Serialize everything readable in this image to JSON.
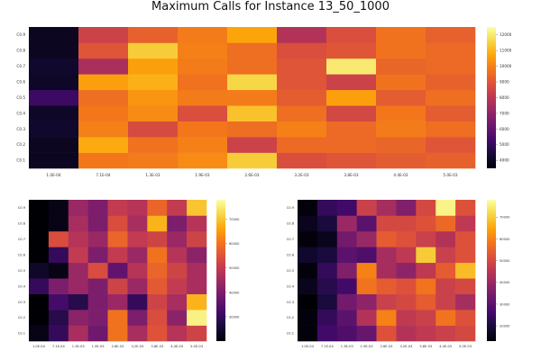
{
  "title": "Maximum Calls for Instance 13_50_1000",
  "chart_data": [
    {
      "type": "heatmap",
      "title": "Maximum Calls for Instance 13_50_1000",
      "x": [
        "1.0E-04",
        "7.1E-04",
        "1.3E-03",
        "1.9E-03",
        "2.6E-03",
        "3.2E-03",
        "3.8E-03",
        "4.4E-03",
        "5.0E-03"
      ],
      "y": [
        "C0.1",
        "C0.2",
        "C0.3",
        "C0.4",
        "C0.5",
        "C0.6",
        "C0.7",
        "C0.8",
        "C0.9"
      ],
      "colorbar_ticks": [
        4000,
        5000,
        6000,
        7000,
        8000,
        9000,
        10000,
        11000,
        12000
      ],
      "clim": [
        3500,
        12500
      ],
      "colormap": "inferno",
      "z": [
        [
          4000,
          9800,
          9900,
          10200,
          11400,
          8800,
          9000,
          9200,
          9300
        ],
        [
          4000,
          10800,
          9700,
          10000,
          8400,
          9500,
          9500,
          9400,
          9000
        ],
        [
          4200,
          10000,
          8700,
          9800,
          9600,
          10000,
          9500,
          9900,
          9600
        ],
        [
          4100,
          9800,
          10200,
          8800,
          11200,
          9600,
          8600,
          9800,
          9200
        ],
        [
          5200,
          9600,
          10400,
          9900,
          9900,
          9200,
          10600,
          9200,
          9600
        ],
        [
          4100,
          10600,
          10900,
          9700,
          11600,
          9000,
          8400,
          9700,
          9300
        ],
        [
          4200,
          7600,
          10600,
          9900,
          9600,
          9000,
          12000,
          9400,
          9500
        ],
        [
          4000,
          9000,
          11400,
          10000,
          9600,
          8800,
          9000,
          9700,
          9500
        ],
        [
          4000,
          8400,
          9300,
          9900,
          10700,
          7800,
          8800,
          9700,
          9300
        ]
      ]
    },
    {
      "type": "heatmap",
      "x": [
        "1.0E-04",
        "7.1E-04",
        "1.3E-03",
        "1.9E-03",
        "2.6E-03",
        "3.2E-03",
        "3.8E-03",
        "4.4E-03",
        "5.0E-03"
      ],
      "y": [
        "C0.1",
        "C0.2",
        "C0.3",
        "C0.4",
        "C0.5",
        "C0.6",
        "C0.7",
        "C0.8",
        "C0.9"
      ],
      "colorbar_ticks": [
        30000,
        40000,
        50000,
        60000,
        70000
      ],
      "clim": [
        20000,
        78000
      ],
      "colormap": "inferno",
      "z": [
        [
          22000,
          30000,
          46000,
          38000,
          60000,
          46000,
          55000,
          48000,
          52000
        ],
        [
          20000,
          28000,
          42000,
          40000,
          60000,
          40000,
          54000,
          42000,
          76000
        ],
        [
          20000,
          32000,
          28000,
          40000,
          44000,
          30000,
          52000,
          46000,
          68000
        ],
        [
          30000,
          40000,
          44000,
          40000,
          52000,
          44000,
          56000,
          50000,
          46000
        ],
        [
          24000,
          22000,
          44000,
          54000,
          36000,
          48000,
          58000,
          52000,
          46000
        ],
        [
          20000,
          30000,
          50000,
          40000,
          50000,
          44000,
          60000,
          48000,
          42000
        ],
        [
          20000,
          54000,
          48000,
          44000,
          58000,
          50000,
          52000,
          44000,
          52000
        ],
        [
          20000,
          22000,
          46000,
          40000,
          54000,
          46000,
          68000,
          40000,
          48000
        ],
        [
          20000,
          22000,
          44000,
          40000,
          50000,
          48000,
          58000,
          50000,
          70000
        ]
      ]
    },
    {
      "type": "heatmap",
      "x": [
        "1.0E-04",
        "7.1E-04",
        "1.3E-03",
        "1.9E-03",
        "2.6E-03",
        "3.2E-03",
        "3.8E-03",
        "4.4E-03",
        "5.0E-03"
      ],
      "y": [
        "C0.1",
        "C0.2",
        "C0.3",
        "C0.4",
        "C0.5",
        "C0.6",
        "C0.7",
        "C0.8",
        "C0.9"
      ],
      "colorbar_ticks": [
        20000,
        30000,
        40000,
        50000,
        60000,
        70000
      ],
      "clim": [
        13000,
        78000
      ],
      "colormap": "inferno",
      "z": [
        [
          14000,
          26000,
          28000,
          32000,
          52000,
          44000,
          46000,
          48000,
          50000
        ],
        [
          14000,
          24000,
          30000,
          44000,
          60000,
          46000,
          48000,
          58000,
          52000
        ],
        [
          13000,
          20000,
          34000,
          38000,
          48000,
          50000,
          54000,
          48000,
          42000
        ],
        [
          16000,
          22000,
          26000,
          58000,
          54000,
          52000,
          58000,
          48000,
          50000
        ],
        [
          14000,
          24000,
          36000,
          60000,
          42000,
          38000,
          46000,
          54000,
          68000
        ],
        [
          18000,
          20000,
          30000,
          28000,
          42000,
          46000,
          70000,
          48000,
          52000
        ],
        [
          14000,
          16000,
          34000,
          40000,
          54000,
          52000,
          48000,
          44000,
          52000
        ],
        [
          16000,
          20000,
          40000,
          30000,
          50000,
          50000,
          52000,
          56000,
          46000
        ],
        [
          14000,
          24000,
          26000,
          48000,
          42000,
          36000,
          50000,
          76000,
          52000
        ]
      ]
    }
  ]
}
